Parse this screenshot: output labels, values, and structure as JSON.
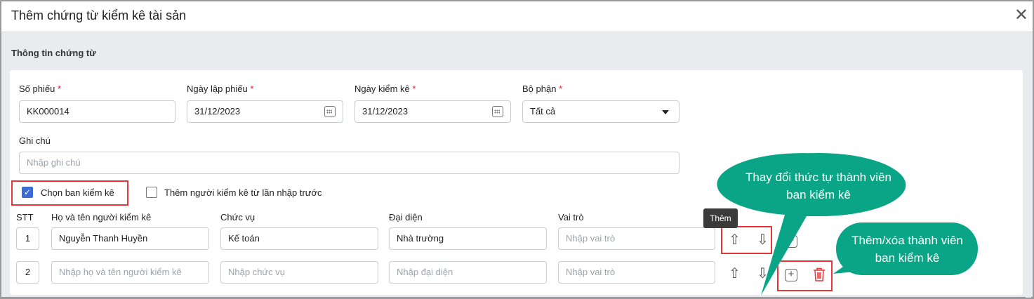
{
  "dialog": {
    "title": "Thêm chứng từ kiểm kê tài sản",
    "close_icon": "close-icon"
  },
  "section": {
    "title": "Thông tin chứng từ"
  },
  "fields": {
    "so_phieu": {
      "label": "Số phiếu",
      "required": "*",
      "value": "KK000014"
    },
    "ngay_lap": {
      "label": "Ngày lập phiếu",
      "required": "*",
      "value": "31/12/2023"
    },
    "ngay_kiem_ke": {
      "label": "Ngày kiểm kê",
      "required": "*",
      "value": "31/12/2023"
    },
    "bo_phan": {
      "label": "Bộ phận",
      "required": "*",
      "value": "Tất cả"
    },
    "ghi_chu": {
      "label": "Ghi chú",
      "placeholder": "Nhập ghi chú"
    }
  },
  "checkboxes": {
    "chon_ban": {
      "label": "Chọn ban kiểm kê",
      "checked": true
    },
    "them_nguoi": {
      "label": "Thêm người kiểm kê từ lần nhập trước",
      "checked": false
    }
  },
  "table": {
    "headers": [
      "STT",
      "Họ và tên người kiểm kê",
      "Chức vụ",
      "Đại diện",
      "Vai trò"
    ],
    "rows": [
      {
        "stt": "1",
        "ho_ten": "Nguyễn Thanh Huyền",
        "chuc_vu": "Kế toán",
        "dai_dien": "Nhà trường",
        "vai_tro": ""
      },
      {
        "stt": "2",
        "ho_ten": "",
        "chuc_vu": "",
        "dai_dien": "",
        "vai_tro": ""
      }
    ],
    "placeholders": {
      "ho_ten": "Nhập họ và tên người kiểm kê",
      "chuc_vu": "Nhập chức vụ",
      "dai_dien": "Nhập đại diện",
      "vai_tro": "Nhập vai trò"
    }
  },
  "tooltip": "Thêm",
  "callouts": {
    "reorder": "Thay đổi thức tự thành viên ban kiểm kê",
    "add_remove": "Thêm/xóa thành viên ban kiểm kê"
  },
  "colors": {
    "callout": "#0aa586",
    "highlight": "#e8353a",
    "required": "#e0202a",
    "delete": "#e8353a",
    "checkbox": "#3d6bd6"
  }
}
